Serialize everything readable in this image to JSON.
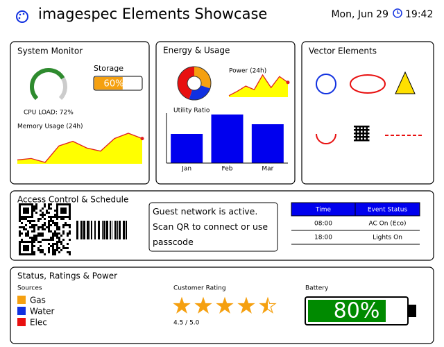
{
  "header": {
    "title": "imagespec Elements Showcase",
    "date": "Mon, Jun 29",
    "time": "19:42"
  },
  "system_monitor": {
    "title": "System Monitor",
    "cpu": {
      "type": "gauge",
      "value": 72,
      "label": "CPU LOAD: 72%",
      "color": "#2e8b2e"
    },
    "storage": {
      "type": "progress",
      "title": "Storage",
      "value": 60,
      "label": "60%",
      "color": "#f5a010"
    },
    "memory": {
      "type": "area",
      "title": "Memory Usage (24h)",
      "values": [
        11,
        15,
        4,
        51,
        64,
        45,
        36,
        72,
        87,
        72
      ],
      "color": "#ffff00",
      "line_color": "#e02020"
    }
  },
  "energy": {
    "title": "Energy & Usage",
    "donut": {
      "type": "pie",
      "values": [
        30,
        25,
        45
      ],
      "colors": [
        "#f5a010",
        "#1030e0",
        "#e81010"
      ]
    },
    "power": {
      "type": "area",
      "title": "Power (24h)",
      "values": [
        6,
        23,
        43,
        29,
        86,
        37,
        80,
        57
      ],
      "color": "#ffff00",
      "line_color": "#e02020"
    },
    "utility": {
      "type": "bar",
      "title": "Utility Ratio",
      "categories": [
        "Jan",
        "Feb",
        "Mar"
      ],
      "values": [
        60,
        100,
        80
      ],
      "color": "#0000ee"
    }
  },
  "vector": {
    "title": "Vector Elements"
  },
  "access": {
    "title": "Access Control & Schedule",
    "note": "Guest network is active. Scan QR to connect or use passcode",
    "table": {
      "header": [
        "Time",
        "Event Status"
      ],
      "rows": [
        [
          "08:00",
          "AC On (Eco)"
        ],
        [
          "18:00",
          "Lights On"
        ]
      ]
    }
  },
  "status": {
    "title": "Status, Ratings & Power",
    "sources": {
      "title": "Sources",
      "items": [
        {
          "name": "Gas",
          "color": "#f5a010"
        },
        {
          "name": "Water",
          "color": "#1030e0"
        },
        {
          "name": "Elec",
          "color": "#e81010"
        }
      ]
    },
    "rating": {
      "title": "Customer Rating",
      "value": 4.5,
      "max": 5,
      "label": "4.5 / 5.0",
      "color": "#f5a010"
    },
    "battery": {
      "title": "Battery",
      "value": 80,
      "label": "80%",
      "color": "#008a00"
    }
  }
}
